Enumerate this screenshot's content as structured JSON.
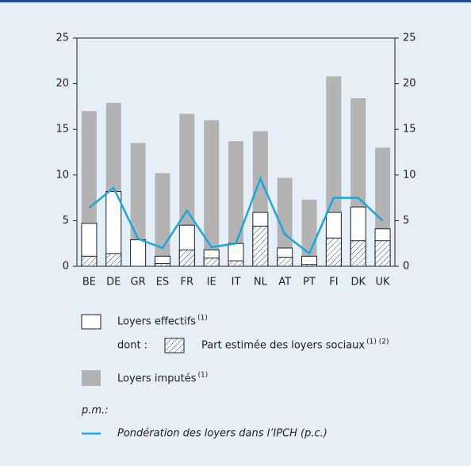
{
  "chart_data": {
    "type": "bar",
    "categories": [
      "BE",
      "DE",
      "GR",
      "ES",
      "FR",
      "IE",
      "IT",
      "NL",
      "AT",
      "PT",
      "FI",
      "DK",
      "UK"
    ],
    "series": [
      {
        "name": "Loyers imputés",
        "note": "(1)",
        "color": "#b3b3b3",
        "kind": "bar",
        "values": [
          17,
          17.9,
          13.5,
          10.2,
          16.7,
          16,
          13.7,
          14.8,
          9.7,
          7.3,
          20.8,
          18.4,
          13
        ]
      },
      {
        "name": "Loyers effectifs",
        "note": "(1)",
        "color": "#ffffff",
        "kind": "bar",
        "values": [
          4.7,
          8.2,
          2.9,
          1.1,
          4.5,
          1.8,
          2.5,
          5.9,
          2.0,
          1.1,
          5.9,
          6.5,
          4.1
        ]
      },
      {
        "name": "Part estimée des loyers sociaux",
        "note": "(1) (2)",
        "prefix": "dont :",
        "color": "#1f4e9e",
        "kind": "hatch",
        "values": [
          1.1,
          1.4,
          0,
          0.3,
          1.8,
          0.9,
          0.6,
          4.4,
          1.0,
          0.2,
          3.1,
          2.8,
          2.8
        ]
      },
      {
        "name": "Pondération des loyers dans l’IPCH (p.c.)",
        "prefix": "p.m.:",
        "color": "#1ba6df",
        "kind": "line",
        "values": [
          6.4,
          8.6,
          3.0,
          2.0,
          6.1,
          2.1,
          2.5,
          9.6,
          3.5,
          1.4,
          7.5,
          7.5,
          5.0
        ]
      }
    ],
    "ylim": [
      0,
      25
    ],
    "yticks": [
      0,
      5,
      10,
      15,
      20,
      25
    ],
    "grid": false
  }
}
